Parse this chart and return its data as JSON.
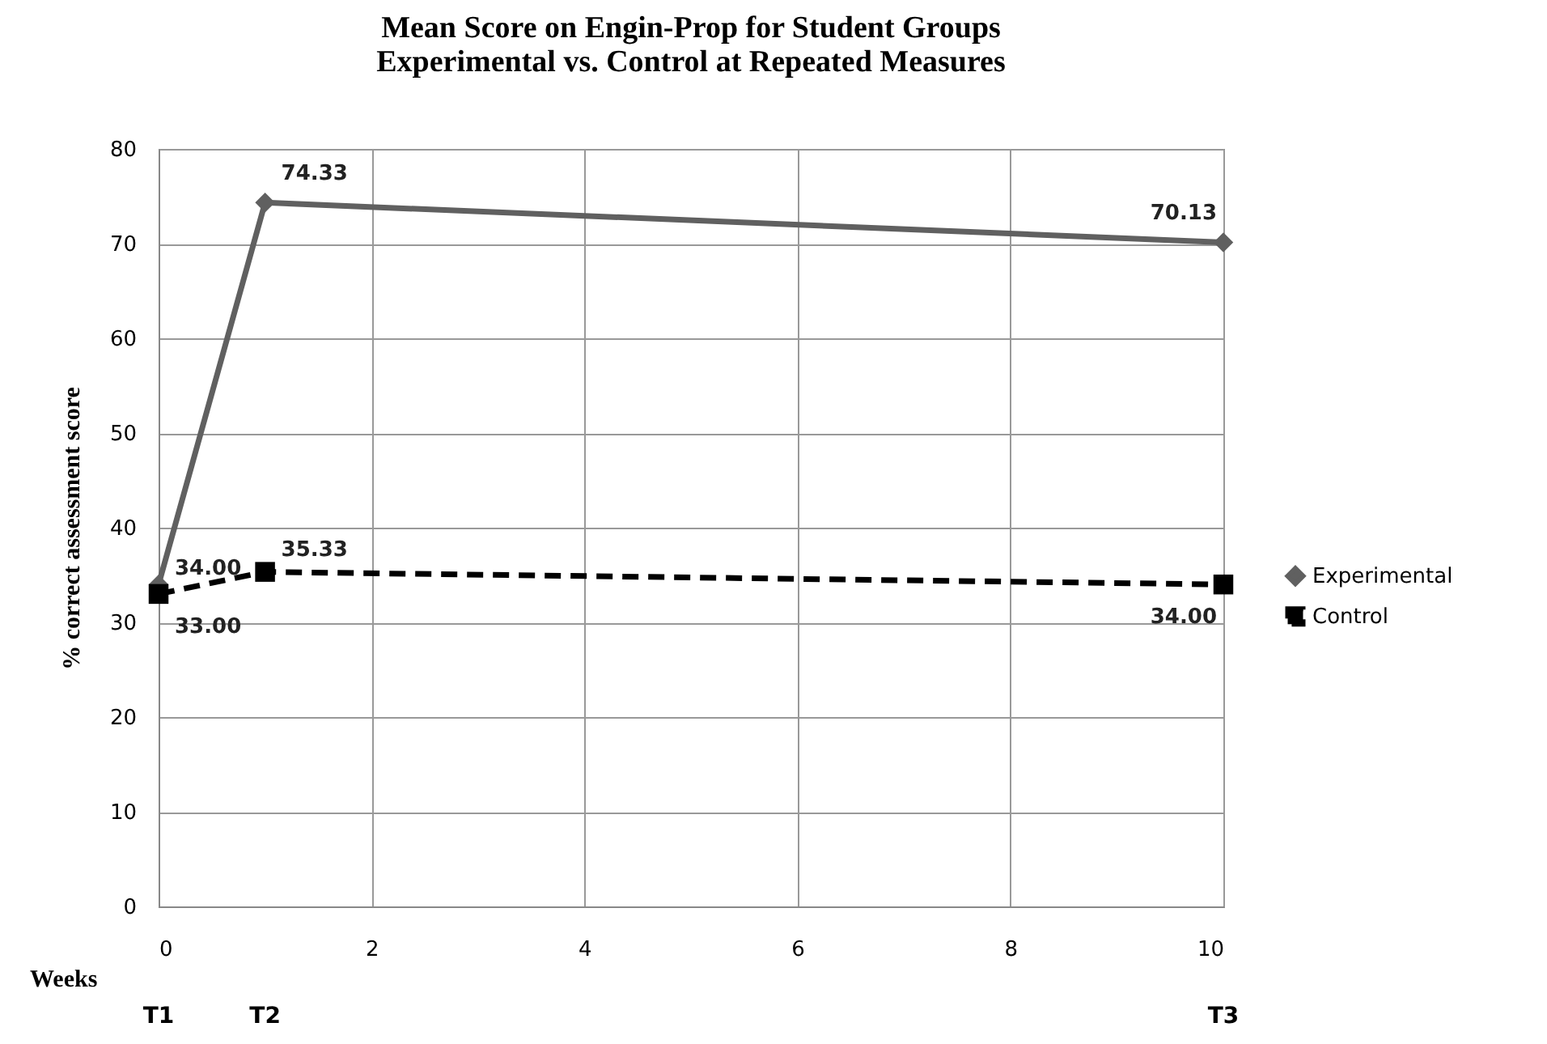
{
  "chart_data": {
    "type": "line",
    "title": "Mean Score on Engin-Prop for  Student Groups",
    "subtitle": "Experimental vs. Control at Repeated Measures",
    "xlabel": "Weeks",
    "ylabel": "% correct assessment score",
    "x": [
      0,
      1,
      10
    ],
    "series": [
      {
        "name": "Experimental",
        "color": "#606060",
        "values": [
          34,
          74.33,
          70.13
        ],
        "value_labels": [
          "34.00",
          "74.33",
          "70.13"
        ],
        "marker": "diamond",
        "line_style": "solid"
      },
      {
        "name": "Control",
        "color": "#000000",
        "values": [
          33,
          35.33,
          34
        ],
        "value_labels": [
          "33.00",
          "35.33",
          "34.00"
        ],
        "marker": "square",
        "line_style": "dashed"
      }
    ],
    "xlim": [
      0,
      10
    ],
    "xticks": [
      0,
      2,
      4,
      6,
      8,
      10
    ],
    "ylim": [
      0,
      80
    ],
    "yticks": [
      0,
      10,
      20,
      30,
      40,
      50,
      60,
      70,
      80
    ],
    "grid": true,
    "legend": "right",
    "annotations": [
      "T1",
      "T2",
      "T3"
    ]
  }
}
